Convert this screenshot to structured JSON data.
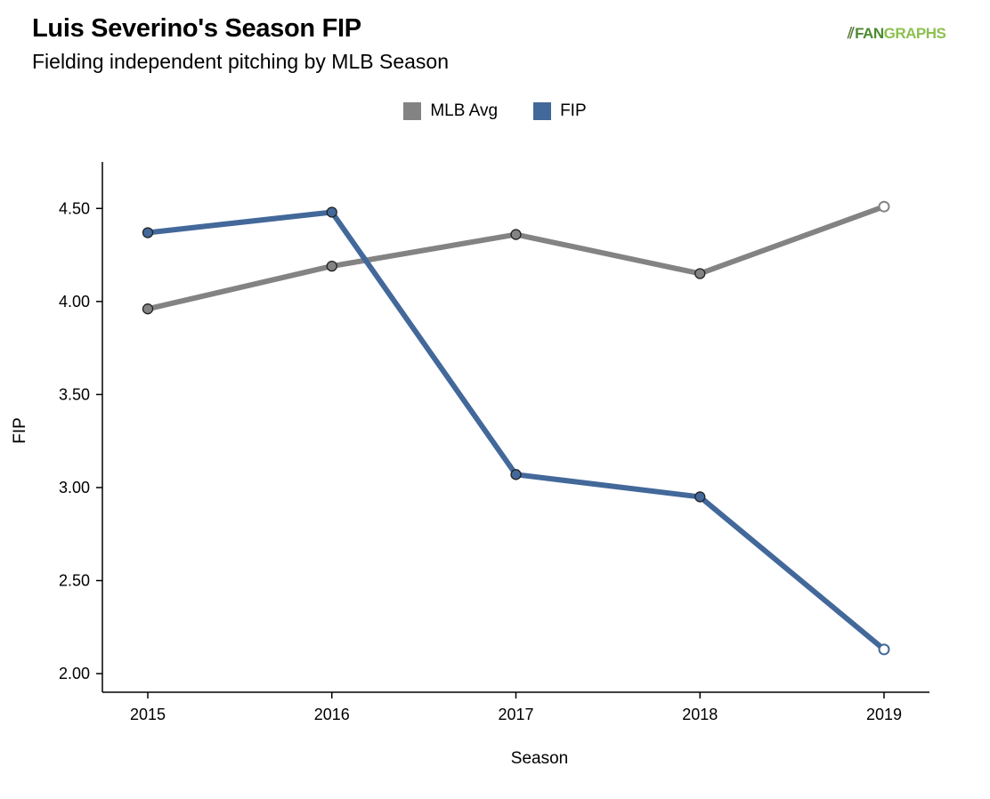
{
  "header": {
    "title": "Luis Severino's Season FIP",
    "subtitle": "Fielding independent pitching by MLB Season"
  },
  "logo": {
    "text_fan": "FAN",
    "text_graphs": "GRAPHS"
  },
  "colors": {
    "mlb_avg": "#838383",
    "fip": "#43689a"
  },
  "chart_data": {
    "type": "line",
    "x": [
      2015,
      2016,
      2017,
      2018,
      2019
    ],
    "xticks": [
      "2015",
      "2016",
      "2017",
      "2018",
      "2019"
    ],
    "yticks": [
      "2.00",
      "2.50",
      "3.00",
      "3.50",
      "4.00",
      "4.50"
    ],
    "ylim": [
      1.9,
      4.75
    ],
    "xlabel": "Season",
    "ylabel": "FIP",
    "legend_position": "top-center",
    "grid": false,
    "series": [
      {
        "name": "MLB Avg",
        "values": [
          3.96,
          4.19,
          4.36,
          4.15,
          4.51
        ]
      },
      {
        "name": "FIP",
        "values": [
          4.37,
          4.48,
          3.07,
          2.95,
          2.13
        ]
      }
    ]
  }
}
